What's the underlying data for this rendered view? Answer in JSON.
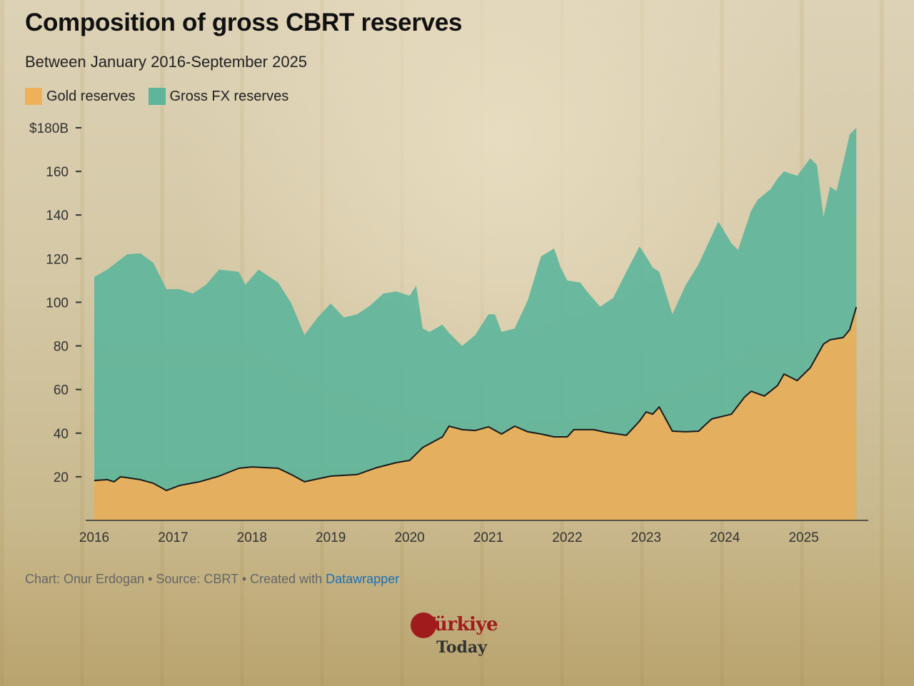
{
  "chart_data": {
    "type": "area",
    "title": "Composition of gross CBRT reserves",
    "subtitle": "Between January 2016-September 2025",
    "xlabel": "",
    "ylabel": "",
    "ylim": [
      0,
      180
    ],
    "yticks": [
      {
        "value": 20,
        "label": "20"
      },
      {
        "value": 40,
        "label": "40"
      },
      {
        "value": 60,
        "label": "60"
      },
      {
        "value": 80,
        "label": "80"
      },
      {
        "value": 100,
        "label": "100"
      },
      {
        "value": 120,
        "label": "120"
      },
      {
        "value": 140,
        "label": "140"
      },
      {
        "value": 160,
        "label": "160"
      },
      {
        "value": 180,
        "label": "$180B"
      }
    ],
    "xticks": [
      "2016",
      "2017",
      "2018",
      "2019",
      "2020",
      "2021",
      "2022",
      "2023",
      "2024",
      "2025"
    ],
    "xlim": [
      "2016-01",
      "2025-09"
    ],
    "grid": false,
    "legend_position": "top-left",
    "series": [
      {
        "name": "Gross FX reserves",
        "color": "#5fb59b",
        "points": [
          [
            "2016-01",
            111.6
          ],
          [
            "2016-03",
            115
          ],
          [
            "2016-06",
            122
          ],
          [
            "2016-08",
            122.5
          ],
          [
            "2016-10",
            118
          ],
          [
            "2016-12",
            106
          ],
          [
            "2017-02",
            106
          ],
          [
            "2017-04",
            104
          ],
          [
            "2017-06",
            108
          ],
          [
            "2017-08",
            115
          ],
          [
            "2017-11",
            114
          ],
          [
            "2017-12",
            108
          ],
          [
            "2018-02",
            115
          ],
          [
            "2018-03",
            113
          ],
          [
            "2018-05",
            109
          ],
          [
            "2018-07",
            99.5
          ],
          [
            "2018-09",
            85
          ],
          [
            "2018-11",
            93
          ],
          [
            "2019-01",
            99.5
          ],
          [
            "2019-03",
            93
          ],
          [
            "2019-05",
            94.5
          ],
          [
            "2019-07",
            98.5
          ],
          [
            "2019-09",
            104
          ],
          [
            "2019-11",
            105
          ],
          [
            "2020-01",
            103
          ],
          [
            "2020-02",
            107.6
          ],
          [
            "2020-03",
            88
          ],
          [
            "2020-04",
            86.4
          ],
          [
            "2020-06",
            89.7
          ],
          [
            "2020-07",
            86
          ],
          [
            "2020-09",
            80
          ],
          [
            "2020-11",
            85
          ],
          [
            "2021-01",
            94.5
          ],
          [
            "2021-02",
            94.5
          ],
          [
            "2021-03",
            86.4
          ],
          [
            "2021-05",
            88
          ],
          [
            "2021-07",
            101
          ],
          [
            "2021-09",
            121
          ],
          [
            "2021-11",
            124.7
          ],
          [
            "2021-12",
            116
          ],
          [
            "2022-01",
            110
          ],
          [
            "2022-03",
            109
          ],
          [
            "2022-04",
            105
          ],
          [
            "2022-06",
            98
          ],
          [
            "2022-08",
            102
          ],
          [
            "2022-10",
            114
          ],
          [
            "2022-12",
            125.6
          ],
          [
            "2023-01",
            121
          ],
          [
            "2023-02",
            116
          ],
          [
            "2023-03",
            114
          ],
          [
            "2023-05",
            94.5
          ],
          [
            "2023-07",
            107.7
          ],
          [
            "2023-09",
            117.5
          ],
          [
            "2023-11",
            130.5
          ],
          [
            "2023-12",
            137
          ],
          [
            "2024-02",
            127
          ],
          [
            "2024-03",
            124
          ],
          [
            "2024-05",
            142
          ],
          [
            "2024-06",
            147
          ],
          [
            "2024-08",
            152
          ],
          [
            "2024-09",
            156.7
          ],
          [
            "2024-10",
            160
          ],
          [
            "2024-12",
            158
          ],
          [
            "2025-02",
            166
          ],
          [
            "2025-03",
            163
          ],
          [
            "2025-04",
            139
          ],
          [
            "2025-05",
            153
          ],
          [
            "2025-06",
            151
          ],
          [
            "2025-08",
            177
          ],
          [
            "2025-09",
            180
          ]
        ]
      },
      {
        "name": "Gold reserves",
        "color": "#efb05a",
        "points": [
          [
            "2016-01",
            18.3
          ],
          [
            "2016-03",
            18.7
          ],
          [
            "2016-04",
            17.7
          ],
          [
            "2016-05",
            20
          ],
          [
            "2016-08",
            18.7
          ],
          [
            "2016-10",
            17
          ],
          [
            "2016-12",
            13.7
          ],
          [
            "2017-02",
            16
          ],
          [
            "2017-05",
            17.7
          ],
          [
            "2017-08",
            20.3
          ],
          [
            "2017-11",
            23.9
          ],
          [
            "2018-01",
            24.5
          ],
          [
            "2018-05",
            23.9
          ],
          [
            "2018-07",
            21
          ],
          [
            "2018-09",
            17.7
          ],
          [
            "2018-11",
            19
          ],
          [
            "2019-01",
            20.3
          ],
          [
            "2019-05",
            21
          ],
          [
            "2019-08",
            24.2
          ],
          [
            "2019-11",
            26.5
          ],
          [
            "2020-01",
            27.5
          ],
          [
            "2020-03",
            33.4
          ],
          [
            "2020-06",
            38.3
          ],
          [
            "2020-07",
            43.2
          ],
          [
            "2020-09",
            41.6
          ],
          [
            "2020-11",
            41.2
          ],
          [
            "2021-01",
            42.9
          ],
          [
            "2021-03",
            39.6
          ],
          [
            "2021-05",
            43.2
          ],
          [
            "2021-07",
            40.6
          ],
          [
            "2021-09",
            39.6
          ],
          [
            "2021-11",
            38.3
          ],
          [
            "2022-01",
            38.3
          ],
          [
            "2022-02",
            41.6
          ],
          [
            "2022-05",
            41.6
          ],
          [
            "2022-07",
            40.3
          ],
          [
            "2022-10",
            39
          ],
          [
            "2022-12",
            45.5
          ],
          [
            "2023-01",
            49.7
          ],
          [
            "2023-02",
            48.7
          ],
          [
            "2023-03",
            52
          ],
          [
            "2023-05",
            40.9
          ],
          [
            "2023-07",
            40.6
          ],
          [
            "2023-09",
            40.9
          ],
          [
            "2023-10",
            43.8
          ],
          [
            "2023-11",
            46.5
          ],
          [
            "2024-02",
            48.7
          ],
          [
            "2024-04",
            56.6
          ],
          [
            "2024-05",
            59.2
          ],
          [
            "2024-07",
            57
          ],
          [
            "2024-09",
            61.8
          ],
          [
            "2024-10",
            67.1
          ],
          [
            "2024-12",
            64.1
          ],
          [
            "2025-02",
            70
          ],
          [
            "2025-04",
            80.8
          ],
          [
            "2025-05",
            82.8
          ],
          [
            "2025-07",
            83.8
          ],
          [
            "2025-08",
            87.4
          ],
          [
            "2025-09",
            97.8
          ]
        ]
      }
    ]
  },
  "legend": {
    "gold_label": "Gold reserves",
    "fx_label": "Gross FX reserves"
  },
  "footer": {
    "prefix": "Chart: Onur Erdogan • Source: CBRT • Created with ",
    "link": "Datawrapper"
  },
  "logo": {
    "top": "Türkiye",
    "bottom": "Today"
  }
}
